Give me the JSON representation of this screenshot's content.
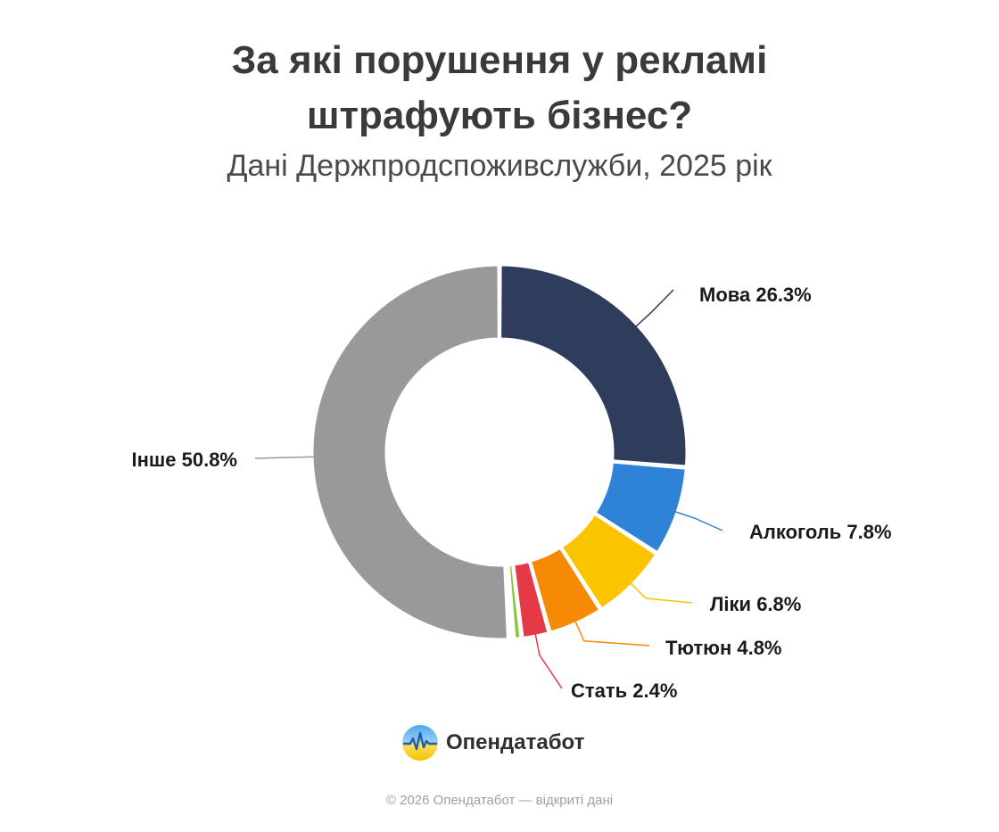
{
  "title_line1": "За які порушення у рекламі",
  "title_line2": "штрафують бізнес?",
  "subtitle": "Дані Держпродспоживслужби, 2025 рік",
  "brand": "Опендатабот",
  "footer": "© 2026 Опендатабот — відкриті дані",
  "chart_data": {
    "type": "pie",
    "donut": true,
    "slices": [
      {
        "label": "Мова",
        "value": 26.3,
        "display": "Мова 26.3%",
        "color": "#2f3d5c"
      },
      {
        "label": "Алкоголь",
        "value": 7.8,
        "display": "Алкоголь 7.8%",
        "color": "#2e82d8"
      },
      {
        "label": "Ліки",
        "value": 6.8,
        "display": "Ліки 6.8%",
        "color": "#fbc400"
      },
      {
        "label": "Тютюн",
        "value": 4.8,
        "display": "Тютюн 4.8%",
        "color": "#f78a04"
      },
      {
        "label": "Стать",
        "value": 2.4,
        "display": "Стать 2.4%",
        "color": "#e63946"
      },
      {
        "label": "",
        "value": 0.7,
        "display": "",
        "color": "#8dc63f"
      },
      {
        "label": "",
        "value": 0.4,
        "display": "",
        "color": "#9b59b6"
      },
      {
        "label": "Інше",
        "value": 50.8,
        "display": "Інше 50.8%",
        "color": "#999999"
      }
    ]
  }
}
